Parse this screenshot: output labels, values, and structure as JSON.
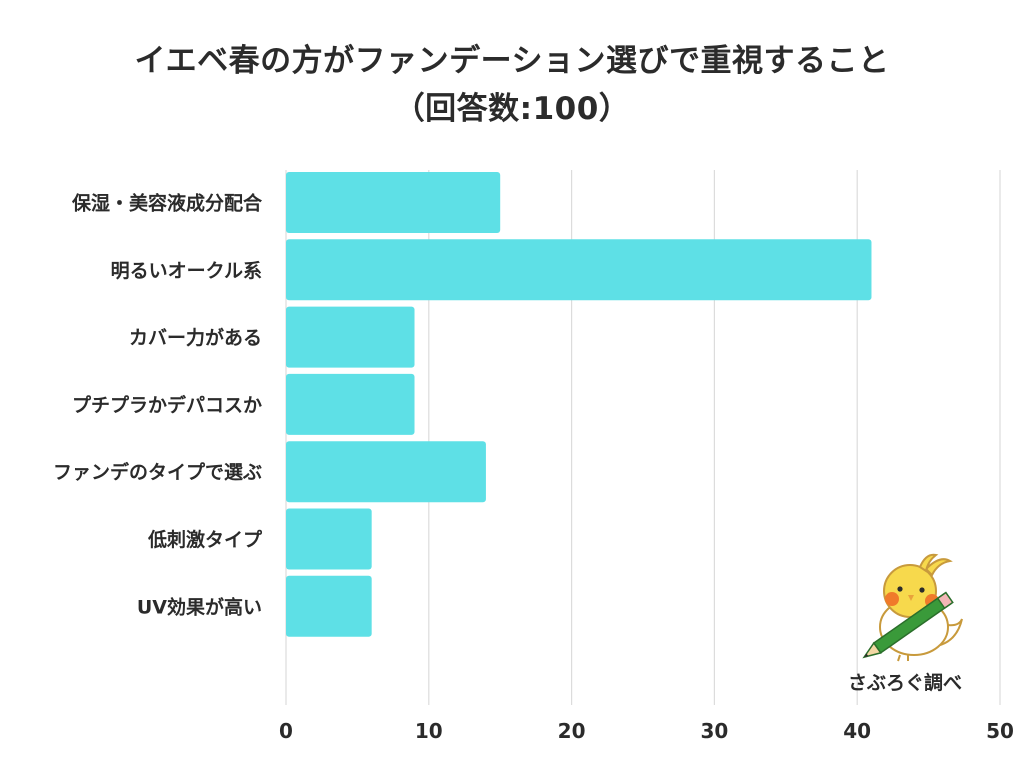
{
  "title_line1": "イエベ春の方がファンデーション選びで重視すること",
  "title_line2": "（回答数:100）",
  "brand_label": "さぶろぐ調べ",
  "colors": {
    "bar": "#5ee0e6",
    "grid": "#dcdcdc",
    "text": "#2b2b2b"
  },
  "chart_data": {
    "type": "bar",
    "orientation": "horizontal",
    "categories": [
      "保湿・美容液成分配合",
      "明るいオークル系",
      "カバー力がある",
      "プチプラかデパコスか",
      "ファンデのタイプで選ぶ",
      "低刺激タイプ",
      "UV効果が高い"
    ],
    "values": [
      15,
      41,
      9,
      9,
      14,
      6,
      6
    ],
    "xlim": [
      0,
      50
    ],
    "xticks": [
      0,
      10,
      20,
      30,
      40,
      50
    ],
    "grid": true,
    "legend": "none",
    "title": "イエベ春の方がファンデーション選びで重視すること（回答数:100）",
    "xlabel": "",
    "ylabel": ""
  }
}
